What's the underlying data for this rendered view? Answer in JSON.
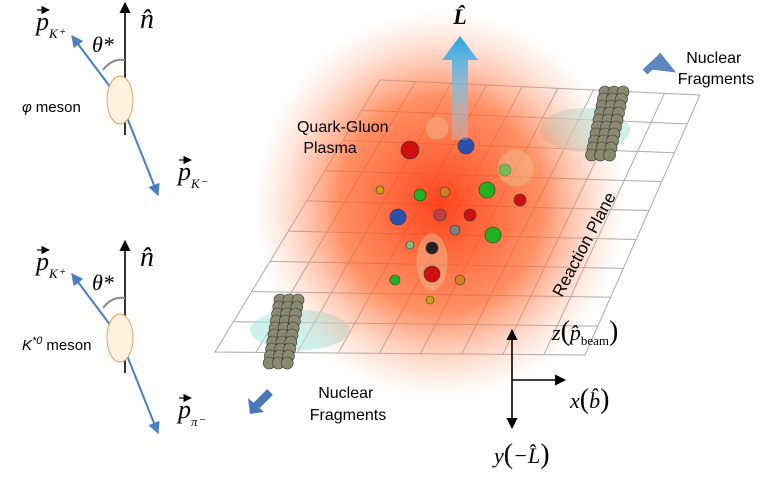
{
  "top_decay": {
    "n_label": "n̂",
    "theta_label": "θ*",
    "meson_symbol": "φ",
    "meson_word": "meson",
    "daughter1": {
      "symbol": "p",
      "subscript": "K⁺"
    },
    "daughter2": {
      "symbol": "p",
      "subscript": "K⁻"
    }
  },
  "bottom_decay": {
    "n_label": "n̂",
    "theta_label": "θ*",
    "meson_symbol": "K",
    "meson_superscript": "*0",
    "meson_word": "meson",
    "daughter1": {
      "symbol": "p",
      "subscript": "K⁺"
    },
    "daughter2": {
      "symbol": "p",
      "subscript": "π⁻"
    }
  },
  "collision": {
    "angular_momentum_label": "L̂",
    "qgp_label": [
      "Quark-Gluon",
      "Plasma"
    ],
    "fragments_top": [
      "Nuclear",
      "Fragments"
    ],
    "fragments_bottom": [
      "Nuclear",
      "Fragments"
    ],
    "plane_label": "Reaction Plane"
  },
  "axes": {
    "z": {
      "symbol": "z",
      "open": "(",
      "argument": "p̂",
      "subscript": "beam",
      "close": ")"
    },
    "x": {
      "symbol": "x",
      "open": "(",
      "argument": "b̂",
      "close": ")"
    },
    "y": {
      "symbol": "y",
      "open": "(",
      "argument": "−L̂",
      "close": ")"
    }
  }
}
